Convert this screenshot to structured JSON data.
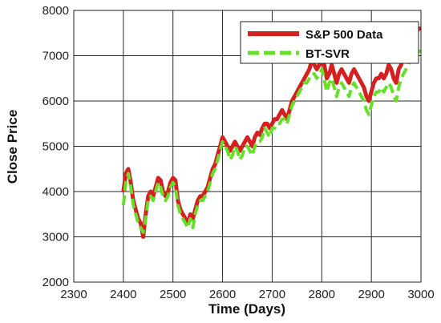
{
  "chart_data": {
    "type": "line",
    "title": "",
    "xlabel": "Time (Days)",
    "ylabel": "Close Price",
    "xlim": [
      2300,
      3000
    ],
    "ylim": [
      2000,
      8000
    ],
    "xticks": [
      2300,
      2400,
      2500,
      2600,
      2700,
      2800,
      2900,
      3000
    ],
    "yticks": [
      2000,
      3000,
      4000,
      5000,
      6000,
      7000,
      8000
    ],
    "grid": true,
    "legend_position": "top-right",
    "series": [
      {
        "name": "S&P 500 Data",
        "color": "#d42020",
        "style": "solid",
        "x": [
          2400,
          2405,
          2410,
          2415,
          2420,
          2425,
          2430,
          2435,
          2440,
          2445,
          2450,
          2455,
          2460,
          2465,
          2470,
          2475,
          2480,
          2485,
          2490,
          2495,
          2500,
          2505,
          2510,
          2515,
          2520,
          2525,
          2530,
          2535,
          2540,
          2545,
          2550,
          2555,
          2560,
          2565,
          2570,
          2575,
          2580,
          2585,
          2590,
          2595,
          2600,
          2605,
          2610,
          2615,
          2620,
          2625,
          2630,
          2635,
          2640,
          2645,
          2650,
          2655,
          2660,
          2665,
          2670,
          2675,
          2680,
          2685,
          2690,
          2695,
          2700,
          2705,
          2710,
          2715,
          2720,
          2725,
          2730,
          2735,
          2740,
          2745,
          2750,
          2755,
          2760,
          2765,
          2770,
          2775,
          2780,
          2785,
          2790,
          2795,
          2800,
          2805,
          2810,
          2815,
          2820,
          2825,
          2830,
          2835,
          2840,
          2845,
          2850,
          2855,
          2860,
          2865,
          2870,
          2875,
          2880,
          2885,
          2890,
          2895,
          2900,
          2905,
          2910,
          2915,
          2920,
          2925,
          2930,
          2935,
          2940,
          2945,
          2950,
          2955,
          2960,
          2965,
          2970,
          2975,
          2980,
          2985,
          2990,
          2995,
          3000
        ],
        "y": [
          4000,
          4400,
          4500,
          4200,
          3800,
          3600,
          3400,
          3300,
          3000,
          3500,
          3900,
          4000,
          3900,
          4100,
          4300,
          4250,
          4000,
          3900,
          4000,
          4200,
          4300,
          4250,
          3800,
          3600,
          3500,
          3400,
          3300,
          3500,
          3400,
          3600,
          3800,
          3900,
          3900,
          4000,
          4100,
          4300,
          4500,
          4600,
          4800,
          5000,
          5200,
          5100,
          5000,
          4900,
          5000,
          5100,
          5000,
          4900,
          5000,
          5100,
          5200,
          5100,
          5000,
          5200,
          5300,
          5250,
          5400,
          5500,
          5500,
          5400,
          5500,
          5600,
          5600,
          5700,
          5800,
          5700,
          5600,
          5800,
          6000,
          6100,
          6200,
          6300,
          6400,
          6500,
          6600,
          6700,
          6900,
          6800,
          6700,
          6800,
          6900,
          6800,
          6500,
          6600,
          6800,
          6600,
          6400,
          6600,
          6700,
          6600,
          6500,
          6400,
          6600,
          6700,
          6600,
          6500,
          6400,
          6300,
          6100,
          6000,
          6200,
          6400,
          6500,
          6500,
          6600,
          6500,
          6600,
          6800,
          6700,
          6500,
          6400,
          6700,
          6800,
          7000,
          7100,
          7200,
          7400,
          7500,
          7500,
          7600,
          7600
        ]
      },
      {
        "name": "BT-SVR",
        "color": "#66e026",
        "style": "dashed",
        "x": [
          2400,
          2405,
          2410,
          2415,
          2420,
          2425,
          2430,
          2435,
          2440,
          2445,
          2450,
          2455,
          2460,
          2465,
          2470,
          2475,
          2480,
          2485,
          2490,
          2495,
          2500,
          2505,
          2510,
          2515,
          2520,
          2525,
          2530,
          2535,
          2540,
          2545,
          2550,
          2555,
          2560,
          2565,
          2570,
          2575,
          2580,
          2585,
          2590,
          2595,
          2600,
          2605,
          2610,
          2615,
          2620,
          2625,
          2630,
          2635,
          2640,
          2645,
          2650,
          2655,
          2660,
          2665,
          2670,
          2675,
          2680,
          2685,
          2690,
          2695,
          2700,
          2705,
          2710,
          2715,
          2720,
          2725,
          2730,
          2735,
          2740,
          2745,
          2750,
          2755,
          2760,
          2765,
          2770,
          2775,
          2780,
          2785,
          2790,
          2795,
          2800,
          2805,
          2810,
          2815,
          2820,
          2825,
          2830,
          2835,
          2840,
          2845,
          2850,
          2855,
          2860,
          2865,
          2870,
          2875,
          2880,
          2885,
          2890,
          2895,
          2900,
          2905,
          2910,
          2915,
          2920,
          2925,
          2930,
          2935,
          2940,
          2945,
          2950,
          2955,
          2960,
          2965,
          2970,
          2975,
          2980,
          2985,
          2990,
          2995,
          3000
        ],
        "y": [
          3700,
          4200,
          4400,
          4100,
          3700,
          3500,
          3300,
          3200,
          3100,
          3400,
          3800,
          3900,
          3800,
          4000,
          4200,
          4100,
          3900,
          3800,
          3900,
          4100,
          4200,
          4100,
          3700,
          3500,
          3400,
          3300,
          3200,
          3400,
          3200,
          3500,
          3700,
          3800,
          3800,
          3900,
          4000,
          4200,
          4400,
          4500,
          4700,
          4900,
          5100,
          5000,
          4900,
          4700,
          4800,
          5000,
          4900,
          4700,
          4800,
          5000,
          5000,
          4900,
          4800,
          5000,
          5100,
          5100,
          5200,
          5400,
          5300,
          5200,
          5400,
          5400,
          5500,
          5500,
          5600,
          5600,
          5500,
          5700,
          5900,
          6000,
          6100,
          6200,
          6300,
          6400,
          6400,
          6500,
          6600,
          6600,
          6500,
          6600,
          6700,
          6500,
          6200,
          6400,
          6500,
          6300,
          6100,
          6300,
          6400,
          6300,
          6200,
          6100,
          6300,
          6400,
          6300,
          6200,
          6100,
          6000,
          5800,
          5700,
          5900,
          6100,
          6200,
          6200,
          6300,
          6200,
          6300,
          6400,
          6300,
          6100,
          6000,
          6300,
          6500,
          6600,
          6700,
          6800,
          7000,
          7000,
          7000,
          7100,
          7100
        ]
      }
    ]
  }
}
